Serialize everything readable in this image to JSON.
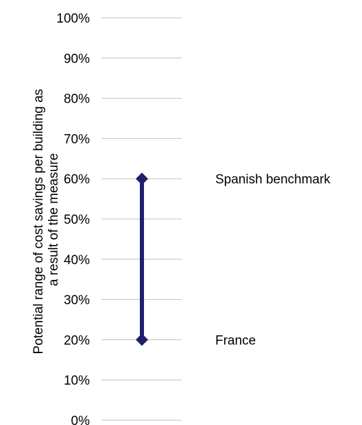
{
  "chart_data": {
    "type": "range",
    "ylabel_lines": [
      "Potential range of cost savings  per building as",
      "a result of the measure"
    ],
    "ylim": [
      0,
      100
    ],
    "yticks": [
      "0%",
      "10%",
      "20%",
      "30%",
      "40%",
      "50%",
      "60%",
      "70%",
      "80%",
      "90%",
      "100%"
    ],
    "ytick_values": [
      0,
      10,
      20,
      30,
      40,
      50,
      60,
      70,
      80,
      90,
      100
    ],
    "grid": true,
    "range": {
      "low": 20,
      "high": 60,
      "color": "#1f1f6b"
    },
    "annotations": [
      {
        "text": "Spanish benchmark",
        "value": 60
      },
      {
        "text": "France",
        "value": 20
      }
    ]
  }
}
